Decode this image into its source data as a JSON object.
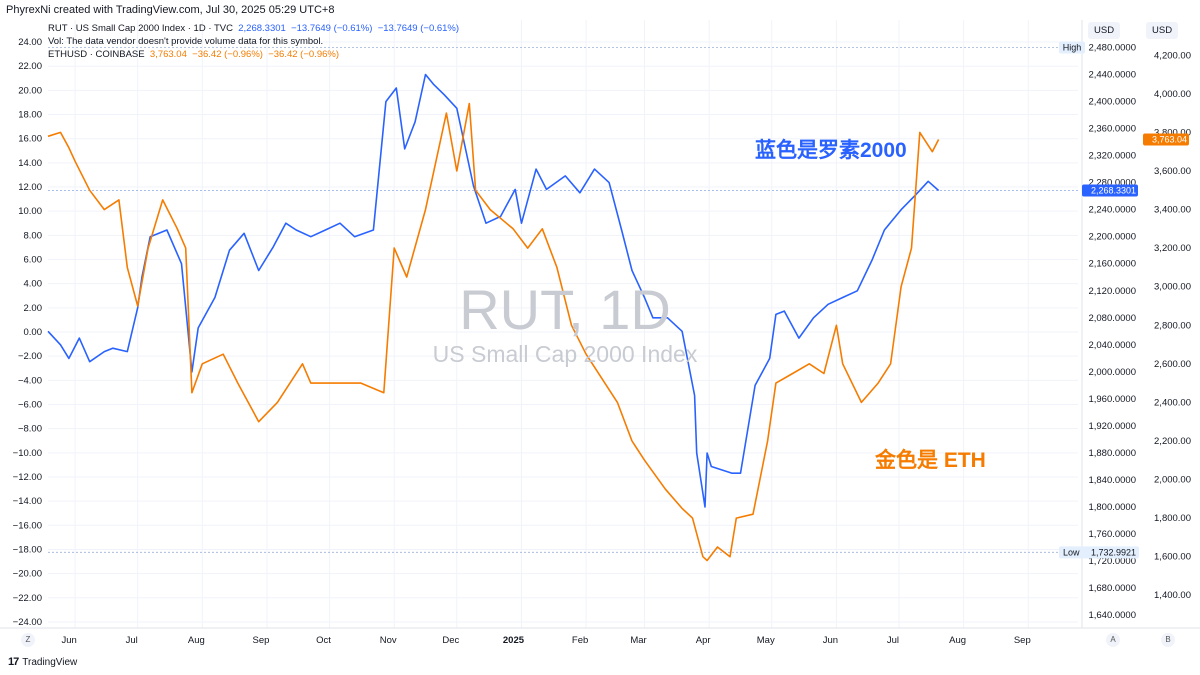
{
  "header": {
    "created_by": "PhyrexNi created with TradingView.com, Jul 30, 2025 05:29 UTC+8"
  },
  "legend": {
    "rut_line": "RUT · US Small Cap 2000 Index · 1D · TVC",
    "rut_value": "2,268.3301",
    "rut_change1": "−13.7649 (−0.61%)",
    "rut_change2": "−13.7649 (−0.61%)",
    "vol_note": "Vol: The data vendor doesn't provide volume data for this symbol.",
    "eth_line": "ETHUSD · COINBASE",
    "eth_value": "3,763.04",
    "eth_change1": "−36.42 (−0.96%)",
    "eth_change2": "−36.42 (−0.96%)"
  },
  "watermark": {
    "title": "RUT, 1D",
    "subtitle": "US Small Cap 2000 Index"
  },
  "annotations": {
    "blue_note": "蓝色是罗素2000",
    "orange_note": "金色是 ETH"
  },
  "scale_units": {
    "rut": "USD",
    "eth": "USD"
  },
  "markers": {
    "high_label": "High",
    "low_label": "Low",
    "low_value": "1,732.9921",
    "rut_last": "2,268.3301",
    "eth_last": "3,763.04"
  },
  "footer": {
    "brand": "TradingView",
    "left_button": "Z",
    "right_button_a": "A",
    "right_button_b": "B"
  },
  "colors": {
    "rut": "#2962ff",
    "eth": "#f57c00",
    "grid": "#f0f3fa",
    "axis_text": "#131722"
  },
  "chart_data": {
    "type": "line",
    "title": "",
    "x_ticks": [
      "Jun",
      "Jul",
      "Aug",
      "Sep",
      "Oct",
      "Nov",
      "Dec",
      "2025",
      "Feb",
      "Mar",
      "Apr",
      "May",
      "Jun",
      "Jul",
      "Aug",
      "Sep"
    ],
    "left_axis": {
      "ticks": [
        "24.00",
        "22.00",
        "20.00",
        "18.00",
        "16.00",
        "14.00",
        "12.00",
        "10.00",
        "8.00",
        "6.00",
        "4.00",
        "2.00",
        "0.00",
        "−2.00",
        "−4.00",
        "−6.00",
        "−8.00",
        "−10.00",
        "−12.00",
        "−14.00",
        "−16.00",
        "−18.00",
        "−20.00",
        "−22.00",
        "−24.00"
      ],
      "ylim": [
        -24,
        24
      ]
    },
    "rut_axis": {
      "ticks": [
        "2,480.0000",
        "2,440.0000",
        "2,400.0000",
        "2,360.0000",
        "2,320.0000",
        "2,280.0000",
        "2,240.0000",
        "2,200.0000",
        "2,160.0000",
        "2,120.0000",
        "2,080.0000",
        "2,040.0000",
        "2,000.0000",
        "1,960.0000",
        "1,920.0000",
        "1,880.0000",
        "1,840.0000",
        "1,800.0000",
        "1,760.0000",
        "1,720.0000",
        "1,680.0000",
        "1,640.0000"
      ],
      "ylim": [
        1621,
        2497
      ]
    },
    "eth_axis": {
      "ticks": [
        "4,200.00",
        "4,000.00",
        "3,800.00",
        "3,600.00",
        "3,400.00",
        "3,200.00",
        "3,000.00",
        "2,800.00",
        "2,600.00",
        "2,400.00",
        "2,200.00",
        "2,000.00",
        "1,800.00",
        "1,600.00",
        "1,400.00"
      ],
      "ylim": [
        1230,
        4300
      ]
    },
    "series": [
      {
        "name": "RUT · US Small Cap 2000 Index",
        "axis": "rut",
        "x": [
          "2024-05-28",
          "2024-06-03",
          "2024-06-07",
          "2024-06-12",
          "2024-06-17",
          "2024-06-24",
          "2024-06-28",
          "2024-07-05",
          "2024-07-10",
          "2024-07-12",
          "2024-07-16",
          "2024-07-24",
          "2024-07-31",
          "2024-08-05",
          "2024-08-08",
          "2024-08-16",
          "2024-08-23",
          "2024-08-30",
          "2024-09-06",
          "2024-09-13",
          "2024-09-19",
          "2024-09-24",
          "2024-10-01",
          "2024-10-08",
          "2024-10-15",
          "2024-10-22",
          "2024-10-31",
          "2024-11-06",
          "2024-11-11",
          "2024-11-15",
          "2024-11-20",
          "2024-11-25",
          "2024-11-29",
          "2024-12-04",
          "2024-12-10",
          "2024-12-18",
          "2024-12-24",
          "2024-12-31",
          "2025-01-07",
          "2025-01-10",
          "2025-01-17",
          "2025-01-22",
          "2025-01-31",
          "2025-02-07",
          "2025-02-14",
          "2025-02-21",
          "2025-02-27",
          "2025-03-04",
          "2025-03-10",
          "2025-03-14",
          "2025-03-21",
          "2025-03-28",
          "2025-04-03",
          "2025-04-04",
          "2025-04-08",
          "2025-04-09",
          "2025-04-11",
          "2025-04-21",
          "2025-04-25",
          "2025-05-02",
          "2025-05-09",
          "2025-05-12",
          "2025-05-16",
          "2025-05-23",
          "2025-05-30",
          "2025-06-06",
          "2025-06-13",
          "2025-06-20",
          "2025-06-27",
          "2025-07-03",
          "2025-07-11",
          "2025-07-18",
          "2025-07-24",
          "2025-07-29"
        ],
        "values": [
          2060,
          2040,
          2020,
          2050,
          2015,
          2030,
          2035,
          2030,
          2095,
          2140,
          2200,
          2210,
          2160,
          2000,
          2065,
          2110,
          2180,
          2205,
          2150,
          2185,
          2220,
          2210,
          2200,
          2210,
          2220,
          2200,
          2210,
          2400,
          2420,
          2330,
          2370,
          2440,
          2425,
          2410,
          2390,
          2275,
          2220,
          2230,
          2270,
          2220,
          2300,
          2270,
          2290,
          2265,
          2300,
          2280,
          2210,
          2150,
          2110,
          2080,
          2080,
          2060,
          1965,
          1880,
          1800,
          1880,
          1860,
          1850,
          1850,
          1980,
          2020,
          2085,
          2090,
          2050,
          2080,
          2100,
          2110,
          2120,
          2165,
          2210,
          2240,
          2262,
          2282,
          2268.33
        ]
      },
      {
        "name": "ETHUSD · COINBASE",
        "axis": "eth",
        "x": [
          "2024-05-28",
          "2024-06-03",
          "2024-06-07",
          "2024-06-10",
          "2024-06-17",
          "2024-06-24",
          "2024-07-01",
          "2024-07-05",
          "2024-07-10",
          "2024-07-15",
          "2024-07-22",
          "2024-07-29",
          "2024-08-02",
          "2024-08-05",
          "2024-08-10",
          "2024-08-20",
          "2024-08-27",
          "2024-09-06",
          "2024-09-15",
          "2024-09-27",
          "2024-10-01",
          "2024-10-14",
          "2024-10-25",
          "2024-11-05",
          "2024-11-10",
          "2024-11-16",
          "2024-11-25",
          "2024-12-05",
          "2024-12-10",
          "2024-12-16",
          "2024-12-19",
          "2024-12-26",
          "2025-01-06",
          "2025-01-13",
          "2025-01-20",
          "2025-01-27",
          "2025-02-03",
          "2025-02-10",
          "2025-02-25",
          "2025-03-04",
          "2025-03-10",
          "2025-03-20",
          "2025-03-28",
          "2025-04-02",
          "2025-04-07",
          "2025-04-09",
          "2025-04-14",
          "2025-04-20",
          "2025-04-23",
          "2025-05-01",
          "2025-05-08",
          "2025-05-12",
          "2025-05-20",
          "2025-05-28",
          "2025-06-04",
          "2025-06-10",
          "2025-06-13",
          "2025-06-22",
          "2025-06-30",
          "2025-07-06",
          "2025-07-11",
          "2025-07-16",
          "2025-07-20",
          "2025-07-26",
          "2025-07-29"
        ],
        "values": [
          3780,
          3800,
          3720,
          3650,
          3500,
          3400,
          3450,
          3100,
          2900,
          3200,
          3450,
          3300,
          3200,
          2450,
          2600,
          2650,
          2500,
          2300,
          2400,
          2600,
          2500,
          2500,
          2500,
          2450,
          3200,
          3050,
          3400,
          3900,
          3600,
          3950,
          3500,
          3400,
          3300,
          3200,
          3300,
          3100,
          2800,
          2650,
          2400,
          2200,
          2100,
          1950,
          1850,
          1800,
          1600,
          1580,
          1650,
          1600,
          1800,
          1820,
          2200,
          2500,
          2550,
          2600,
          2550,
          2800,
          2600,
          2400,
          2500,
          2600,
          3000,
          3200,
          3800,
          3700,
          3763.04
        ]
      }
    ]
  }
}
